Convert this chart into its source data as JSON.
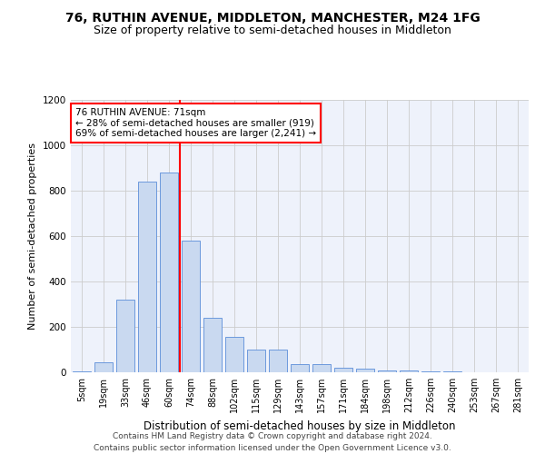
{
  "title1": "76, RUTHIN AVENUE, MIDDLETON, MANCHESTER, M24 1FG",
  "title2": "Size of property relative to semi-detached houses in Middleton",
  "xlabel": "Distribution of semi-detached houses by size in Middleton",
  "ylabel": "Number of semi-detached properties",
  "annotation_line1": "76 RUTHIN AVENUE: 71sqm",
  "annotation_line2": "← 28% of semi-detached houses are smaller (919)",
  "annotation_line3": "69% of semi-detached houses are larger (2,241) →",
  "footnote1": "Contains HM Land Registry data © Crown copyright and database right 2024.",
  "footnote2": "Contains public sector information licensed under the Open Government Licence v3.0.",
  "bar_labels": [
    "5sqm",
    "19sqm",
    "33sqm",
    "46sqm",
    "60sqm",
    "74sqm",
    "88sqm",
    "102sqm",
    "115sqm",
    "129sqm",
    "143sqm",
    "157sqm",
    "171sqm",
    "184sqm",
    "198sqm",
    "212sqm",
    "226sqm",
    "240sqm",
    "253sqm",
    "267sqm",
    "281sqm"
  ],
  "bar_values": [
    5,
    45,
    320,
    840,
    880,
    580,
    240,
    155,
    100,
    100,
    35,
    35,
    20,
    15,
    10,
    10,
    5,
    5,
    2,
    1,
    1
  ],
  "bar_color": "#c9d9f0",
  "bar_edge_color": "#5b8dd9",
  "red_line_index": 4.5,
  "ylim": [
    0,
    1200
  ],
  "yticks": [
    0,
    200,
    400,
    600,
    800,
    1000,
    1200
  ],
  "grid_color": "#cccccc",
  "background_color": "#eef2fb",
  "annotation_box_color": "white",
  "annotation_box_edge": "red",
  "title1_fontsize": 10,
  "title2_fontsize": 9,
  "xlabel_fontsize": 8.5,
  "ylabel_fontsize": 8,
  "footnote_fontsize": 6.5
}
